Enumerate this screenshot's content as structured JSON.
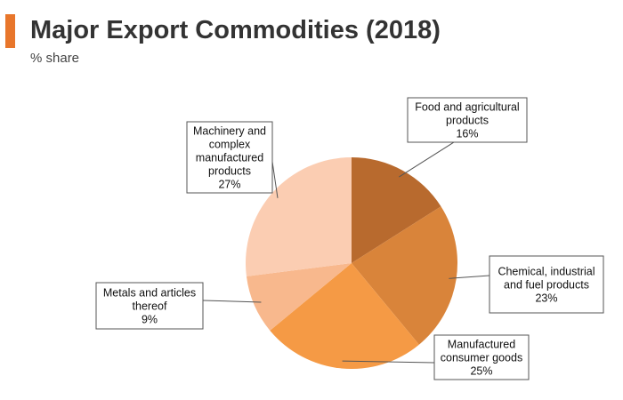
{
  "header": {
    "title": "Major Export Commodities (2018)",
    "subtitle": "% share",
    "accent_color": "#e8762b"
  },
  "chart_data": {
    "type": "pie",
    "title": "Major Export Commodities (2018)",
    "subtitle": "% share",
    "start_angle_deg": 0,
    "direction": "clockwise",
    "slices": [
      {
        "label": [
          "Food and agricultural",
          "products"
        ],
        "value": 16,
        "value_label": "16%",
        "color": "#b86a2e"
      },
      {
        "label": [
          "Chemical, industrial",
          "and fuel products"
        ],
        "value": 23,
        "value_label": "23%",
        "color": "#d9843a"
      },
      {
        "label": [
          "Manufactured",
          "consumer goods"
        ],
        "value": 25,
        "value_label": "25%",
        "color": "#f59a45"
      },
      {
        "label": [
          "Metals and articles",
          "thereof"
        ],
        "value": 9,
        "value_label": "9%",
        "color": "#f8b88d"
      },
      {
        "label": [
          "Machinery and",
          "complex",
          "manufactured",
          "products"
        ],
        "value": 27,
        "value_label": "27%",
        "color": "#fbcdb2"
      }
    ]
  }
}
